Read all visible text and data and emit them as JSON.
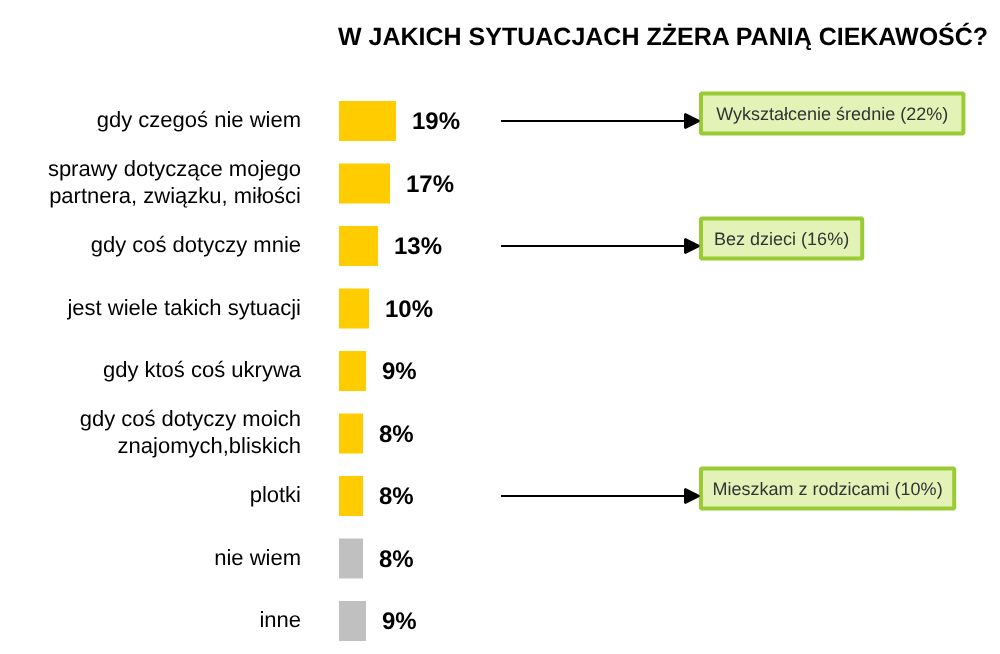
{
  "chart_data": {
    "type": "bar",
    "orientation": "horizontal",
    "title": "W JAKICH SYTUACJACH ZŻERA PANIĄ CIEKAWOŚĆ?",
    "categories": [
      "gdy czegoś nie wiem",
      "sprawy dotyczące mojego partnera, związku, miłości",
      "gdy coś dotyczy mnie",
      "jest wiele takich sytuacji",
      "gdy ktoś coś ukrywa",
      "gdy coś dotyczy moich znajomych,bliskich",
      "plotki",
      "nie wiem",
      "inne"
    ],
    "values": [
      19,
      17,
      13,
      10,
      9,
      8,
      8,
      8,
      9
    ],
    "colors": [
      "#ffcc00",
      "#ffcc00",
      "#ffcc00",
      "#ffcc00",
      "#ffcc00",
      "#ffcc00",
      "#ffcc00",
      "#c0c0c0",
      "#c0c0c0"
    ],
    "value_labels": [
      "19%",
      "17%",
      "13%",
      "10%",
      "9%",
      "8%",
      "8%",
      "8%",
      "9%"
    ],
    "annotations": [
      "Wykształcenie średnie (22%)",
      "Bez dzieci (16%)",
      "Mieszkam z rodzicami (10%)"
    ]
  }
}
